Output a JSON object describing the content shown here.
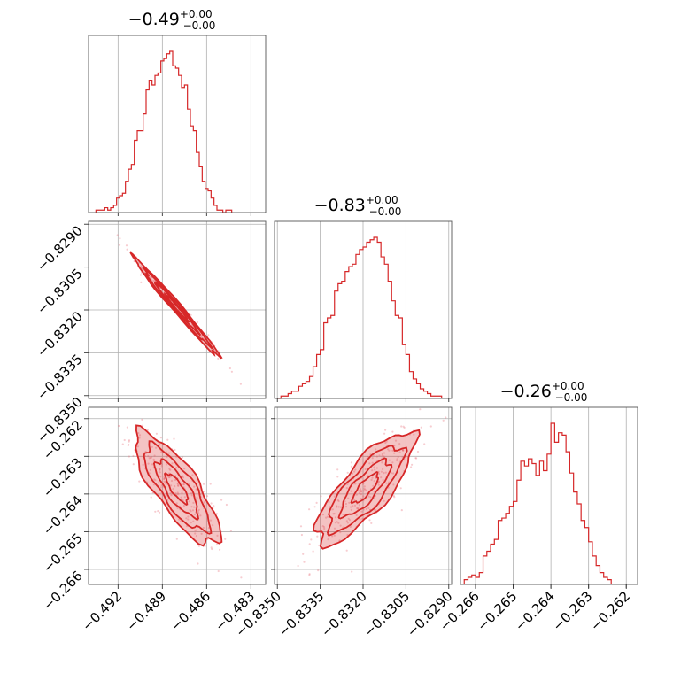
{
  "chart_data": {
    "type": "corner",
    "colors": {
      "main": "#d62728",
      "grid": "#b0b0b0"
    },
    "parameters": [
      {
        "title": {
          "median": "−0.49",
          "plus": "+0.00",
          "minus": "−0.00"
        },
        "range": [
          -0.494,
          -0.482
        ],
        "ticks": [
          -0.492,
          -0.489,
          -0.486,
          -0.483
        ],
        "tick_labels": [
          "−0.492",
          "−0.489",
          "−0.486",
          "−0.483"
        ],
        "hist": {
          "start": -0.4935,
          "step": 0.0002,
          "counts": [
            1,
            1,
            1,
            2,
            1,
            2,
            3,
            6,
            7,
            8,
            13,
            18,
            20,
            30,
            34,
            34,
            41,
            51,
            55,
            53,
            57,
            58,
            63,
            64,
            66,
            67,
            61,
            60,
            57,
            52,
            53,
            43,
            36,
            34,
            25,
            19,
            13,
            10,
            9,
            6,
            3,
            1,
            1,
            0,
            1,
            1
          ]
        }
      },
      {
        "title": {
          "median": "−0.83",
          "plus": "+0.00",
          "minus": "−0.00"
        },
        "range": [
          -0.8351,
          -0.8289
        ],
        "ticks": [
          -0.835,
          -0.8335,
          -0.832,
          -0.8305,
          -0.829
        ],
        "tick_labels": [
          "−0.8350",
          "−0.8335",
          "−0.8320",
          "−0.8305",
          "−0.8290"
        ],
        "hist": {
          "start": -0.835,
          "step": 0.000125,
          "counts": [
            0,
            1,
            1,
            2,
            3,
            3,
            5,
            6,
            7,
            9,
            13,
            18,
            20,
            31,
            33,
            34,
            44,
            47,
            48,
            52,
            54,
            55,
            59,
            61,
            62,
            64,
            65,
            66,
            64,
            58,
            55,
            48,
            40,
            34,
            33,
            22,
            18,
            11,
            8,
            6,
            4,
            3,
            2,
            1,
            1,
            1
          ]
        }
      },
      {
        "title": {
          "median": "−0.26",
          "plus": "+0.00",
          "minus": "−0.00"
        },
        "range": [
          -0.2664,
          -0.2617
        ],
        "ticks": [
          -0.266,
          -0.265,
          -0.264,
          -0.263,
          -0.262
        ],
        "tick_labels": [
          "−0.266",
          "−0.265",
          "−0.264",
          "−0.263",
          "−0.262"
        ],
        "hist": {
          "start": -0.2663,
          "step": 0.0001,
          "counts": [
            2,
            3,
            4,
            3,
            5,
            12,
            14,
            17,
            19,
            27,
            28,
            30,
            33,
            35,
            44,
            52,
            50,
            53,
            51,
            46,
            52,
            48,
            55,
            68,
            60,
            64,
            63,
            56,
            47,
            39,
            34,
            27,
            24,
            18,
            12,
            8,
            5,
            3,
            2
          ]
        }
      }
    ],
    "pairs": [
      {
        "row": 1,
        "col": 0,
        "correlation": -0.99
      },
      {
        "row": 2,
        "col": 0,
        "correlation": -0.8
      },
      {
        "row": 2,
        "col": 1,
        "correlation": 0.8
      }
    ]
  }
}
